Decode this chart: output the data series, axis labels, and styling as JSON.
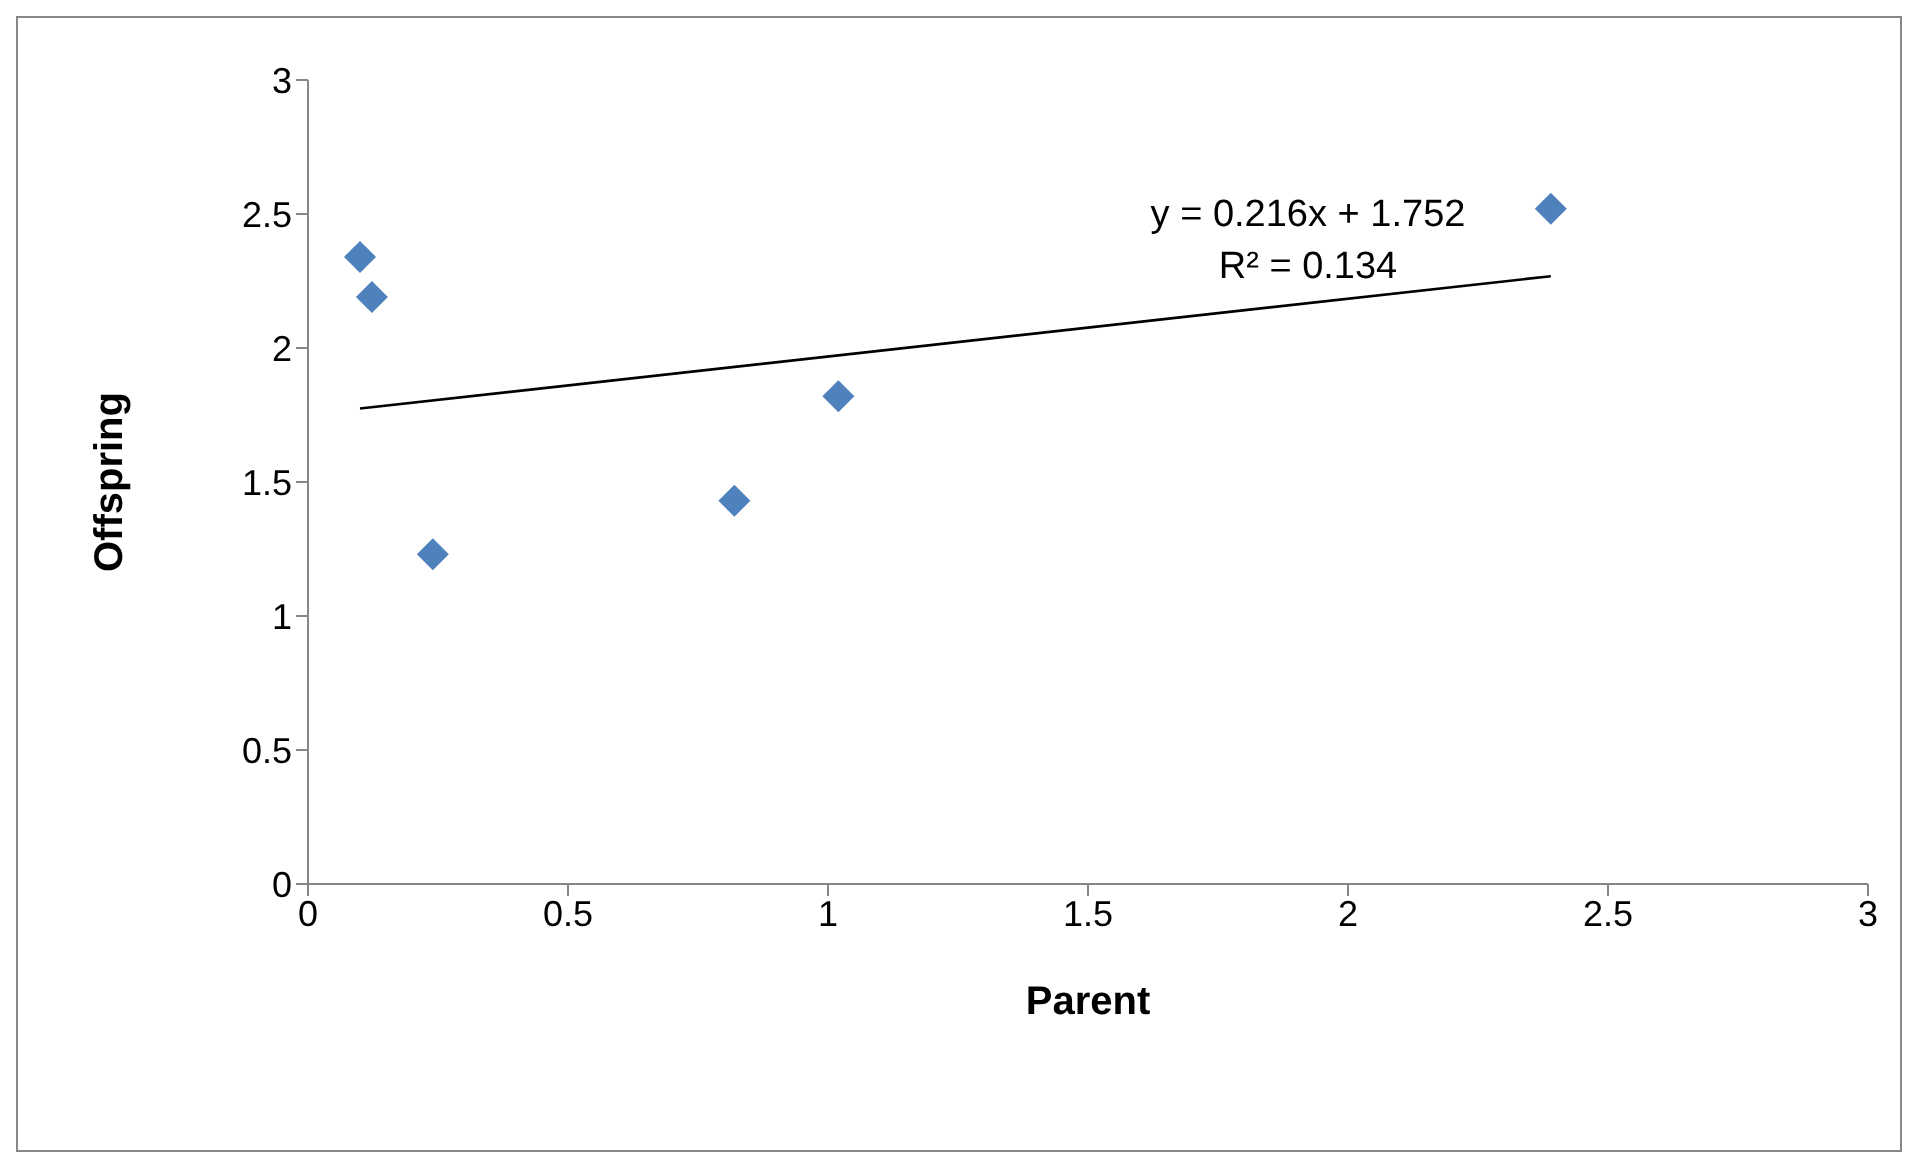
{
  "chart_data": {
    "type": "scatter",
    "xlabel": "Parent",
    "ylabel": "Offspring",
    "series": [
      {
        "color": "#4f81bd",
        "marker": "diamond",
        "x": [
          0.1,
          0.123,
          0.24,
          0.82,
          1.02,
          2.39
        ],
        "values": [
          2.34,
          2.19,
          1.23,
          1.43,
          1.82,
          2.52
        ]
      },
      {
        "type": "line",
        "color": "#000000",
        "marker": "none",
        "x": [
          0.1,
          2.39
        ],
        "values": [
          1.774,
          2.268
        ]
      }
    ],
    "annotations": [
      "y = 0.216x + 1.752",
      "R² = 0.134"
    ],
    "xlim": [
      0,
      3
    ],
    "xticks": [
      0,
      0.5,
      1,
      1.5,
      2,
      2.5,
      3
    ],
    "ylim": [
      0,
      3
    ],
    "yticks": [
      0,
      0.5,
      1,
      1.5,
      2,
      2.5,
      3
    ],
    "grid": false,
    "legend": false
  }
}
